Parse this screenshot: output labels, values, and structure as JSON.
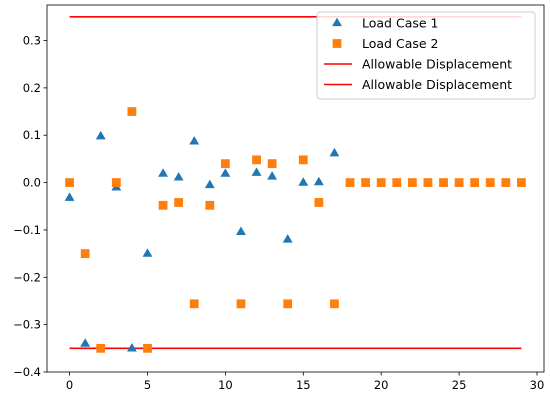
{
  "chart_data": {
    "type": "scatter",
    "title": "",
    "xlabel": "",
    "ylabel": "",
    "xlim": [
      -1.45,
      30.45
    ],
    "ylim": [
      -0.4,
      0.375
    ],
    "xticks": [
      0,
      5,
      10,
      15,
      20,
      25,
      30
    ],
    "yticks": [
      -0.4,
      -0.3,
      -0.2,
      -0.1,
      0.0,
      0.1,
      0.2,
      0.3
    ],
    "ytick_labels": [
      "−0.4",
      "−0.3",
      "−0.2",
      "−0.1",
      "0.0",
      "0.1",
      "0.2",
      "0.3"
    ],
    "grid": false,
    "legend_position": "top-right",
    "series": [
      {
        "name": "Load Case 1",
        "marker": "triangle",
        "color": "#1f77b4",
        "x": [
          0,
          1,
          2,
          3,
          4,
          5,
          6,
          7,
          8,
          9,
          10,
          11,
          12,
          13,
          14,
          15,
          16,
          17
        ],
        "y": [
          -0.032,
          -0.34,
          0.098,
          -0.01,
          -0.35,
          -0.15,
          0.019,
          0.011,
          0.087,
          -0.005,
          0.019,
          -0.104,
          0.021,
          0.013,
          -0.12,
          0.0,
          0.001,
          0.062
        ]
      },
      {
        "name": "Load Case 2",
        "marker": "square",
        "color": "#ff7f0e",
        "x": [
          0,
          1,
          2,
          3,
          4,
          5,
          6,
          7,
          8,
          9,
          10,
          11,
          12,
          13,
          14,
          15,
          16,
          17,
          18,
          19,
          20,
          21,
          22,
          23,
          24,
          25,
          26,
          27,
          28,
          29
        ],
        "y": [
          0,
          -0.15,
          -0.35,
          0,
          0.15,
          -0.35,
          -0.048,
          -0.042,
          -0.256,
          -0.048,
          0.04,
          -0.256,
          0.048,
          0.04,
          -0.256,
          0.048,
          -0.042,
          -0.256,
          0,
          0,
          0,
          0,
          0,
          0,
          0,
          0,
          0,
          0,
          0,
          0
        ]
      }
    ],
    "lines": [
      {
        "name": "Allowable Displacement",
        "color": "#ff0000",
        "x": [
          0,
          29
        ],
        "y": [
          0.35,
          0.35
        ]
      },
      {
        "name": "Allowable Displacement",
        "color": "#ff0000",
        "x": [
          0,
          29
        ],
        "y": [
          -0.35,
          -0.35
        ]
      }
    ]
  }
}
